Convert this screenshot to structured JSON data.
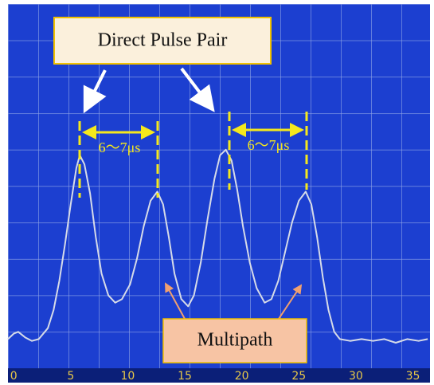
{
  "chart_data": {
    "type": "line",
    "x": [
      -0.5,
      0,
      0.4,
      1,
      1.6,
      2.2,
      3,
      3.5,
      4,
      4.5,
      5,
      5.5,
      5.8,
      6.2,
      6.7,
      7.2,
      7.7,
      8.3,
      8.9,
      9.5,
      10.2,
      10.8,
      11.4,
      12,
      12.6,
      13.1,
      13.6,
      14.1,
      14.7,
      15.3,
      15.8,
      16.4,
      17,
      17.6,
      18.1,
      18.6,
      19.1,
      19.6,
      20.1,
      20.7,
      21.3,
      22,
      22.6,
      23.2,
      23.8,
      24.4,
      25,
      25.6,
      26.1,
      26.6,
      27.1,
      27.6,
      28.1,
      28.6,
      29.5,
      30.5,
      31.5,
      32.5,
      33.5,
      34.5,
      35.5,
      36.3
    ],
    "values": [
      0.8,
      0.95,
      1.0,
      0.85,
      0.75,
      0.8,
      1.1,
      1.6,
      2.4,
      3.4,
      4.5,
      5.5,
      5.85,
      5.6,
      4.8,
      3.6,
      2.6,
      2.0,
      1.8,
      1.9,
      2.3,
      3.0,
      3.9,
      4.6,
      4.85,
      4.5,
      3.6,
      2.6,
      1.9,
      1.7,
      2.0,
      2.9,
      4.1,
      5.2,
      5.85,
      6.0,
      5.7,
      4.9,
      3.9,
      2.9,
      2.2,
      1.8,
      1.9,
      2.4,
      3.2,
      4.0,
      4.6,
      4.85,
      4.5,
      3.6,
      2.5,
      1.6,
      1.0,
      0.8,
      0.75,
      0.8,
      0.75,
      0.8,
      0.7,
      0.8,
      0.75,
      0.8
    ],
    "color": "#d6dbe8",
    "xlim": [
      -0.5,
      36.5
    ],
    "xticks": [
      0,
      5,
      10,
      15,
      20,
      25,
      30,
      35
    ],
    "ylim": [
      0,
      10
    ],
    "annotations": [
      "Direct Pulse Pair",
      "6〜7μs",
      "6〜7μs",
      "Multipath"
    ]
  }
}
